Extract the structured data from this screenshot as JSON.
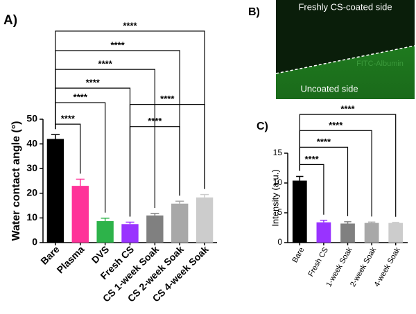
{
  "chart_data": [
    {
      "type": "bar",
      "panel_label": "A)",
      "y_label": "Water contact angle (°)",
      "categories": [
        "Bare",
        "Plasma",
        "DVS",
        "Fresh CS",
        "CS 1-week Soak",
        "CS 2-week Soak",
        "CS 4-week Soak"
      ],
      "values": [
        42,
        23,
        8.7,
        7.5,
        11,
        15.8,
        18.3
      ],
      "errors": [
        1.8,
        2.7,
        1.2,
        0.8,
        0.8,
        1.0,
        1.2
      ],
      "colors": [
        "#000000",
        "#ff3399",
        "#2db34a",
        "#9933ff",
        "#808080",
        "#a8a8a8",
        "#cccccc"
      ],
      "ylim": [
        0,
        50
      ],
      "yticks": [
        0,
        10,
        20,
        30,
        40,
        50
      ],
      "significance": [
        {
          "from": 0,
          "to": 1,
          "label": "****",
          "y": 48
        },
        {
          "from": 0,
          "to": 2,
          "label": "****",
          "y": 56.7
        },
        {
          "from": 0,
          "to": 3,
          "label": "****",
          "y": 62.6
        },
        {
          "from": 0,
          "to": 4,
          "label": "****",
          "y": 70.2
        },
        {
          "from": 0,
          "to": 5,
          "label": "****",
          "y": 77.8
        },
        {
          "from": 0,
          "to": 6,
          "label": "****",
          "y": 85.7
        },
        {
          "from": 3,
          "to": 5,
          "label": "****",
          "y": 47
        },
        {
          "from": 3,
          "to": 6,
          "label": "****",
          "y": 56
        }
      ]
    },
    {
      "type": "bar",
      "panel_label": "C)",
      "y_label": "Intensity (a.u.)",
      "categories": [
        "Bare",
        "Fresh CS",
        "1-week Soak",
        "2-week Soak",
        "4-week Soak"
      ],
      "values": [
        10.4,
        3.4,
        3.2,
        3.3,
        3.3
      ],
      "errors": [
        0.7,
        0.35,
        0.3,
        0.15,
        0.1
      ],
      "colors": [
        "#000000",
        "#9933ff",
        "#808080",
        "#a8a8a8",
        "#cccccc"
      ],
      "ylim": [
        0,
        15
      ],
      "yticks": [
        0,
        5,
        10,
        15
      ],
      "significance": [
        {
          "from": 0,
          "to": 1,
          "label": "****",
          "y": 13.1
        },
        {
          "from": 0,
          "to": 2,
          "label": "****",
          "y": 16
        },
        {
          "from": 0,
          "to": 3,
          "label": "****",
          "y": 18.8
        },
        {
          "from": 0,
          "to": 4,
          "label": "****",
          "y": 21.5
        }
      ]
    }
  ],
  "image_panel": {
    "panel_label": "B)",
    "top_text": "Freshly CS-coated side",
    "middle_text": "FITC-Albumin",
    "bottom_text": "Uncoated side"
  }
}
